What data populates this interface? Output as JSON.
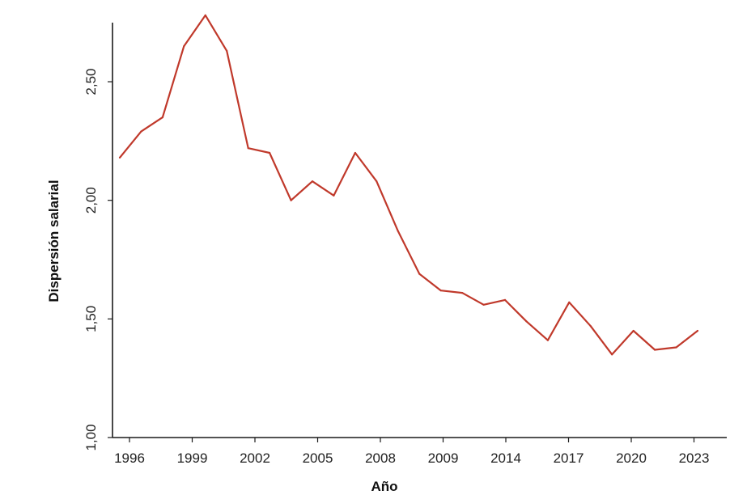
{
  "chart_data": {
    "type": "line",
    "title": "",
    "xlabel": "Año",
    "ylabel": "Dispersión salarial",
    "x_tick_labels": [
      "1996",
      "1999",
      "2002",
      "2005",
      "2008",
      "2009",
      "2014",
      "2017",
      "2020",
      "2023"
    ],
    "y_tick_labels": [
      "1,00",
      "1,50",
      "2,00",
      "2,50"
    ],
    "y_ticks": [
      1.0,
      1.5,
      2.0,
      2.5
    ],
    "ylim": [
      1.0,
      2.79
    ],
    "grid": false,
    "legend": "none",
    "series": [
      {
        "color": "#c0392b",
        "values": [
          2.18,
          2.29,
          2.35,
          2.65,
          2.78,
          2.63,
          2.22,
          2.2,
          2.0,
          2.08,
          2.02,
          2.2,
          2.08,
          1.87,
          1.69,
          1.62,
          1.61,
          1.56,
          1.58,
          1.49,
          1.41,
          1.57,
          1.47,
          1.35,
          1.45,
          1.37,
          1.38,
          1.45
        ]
      }
    ]
  }
}
